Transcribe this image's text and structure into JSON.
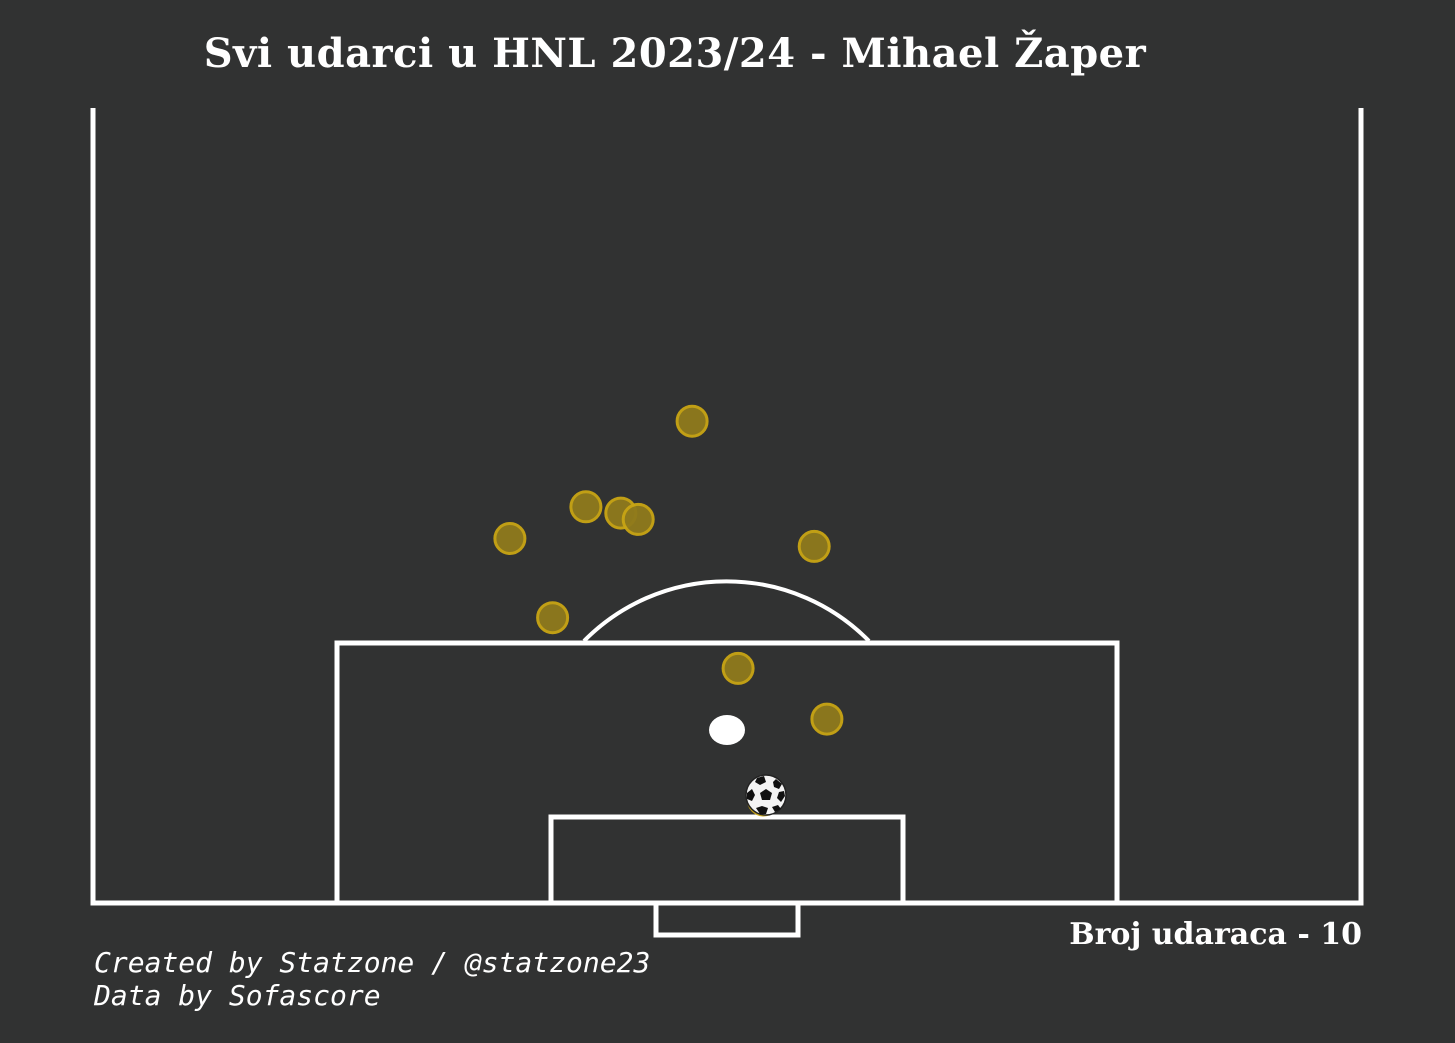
{
  "title": "Svi udarci u HNL 2023/24 - Mihael Žaper",
  "shot_count_label": "Broj udaraca - 10",
  "credits": {
    "created_by": "Created by Statzone / @statzone23",
    "data_by": "Data by Sofascore"
  },
  "colors": {
    "background": "#313232",
    "lines": "#ffffff",
    "shot_fill": "#8f7a1c",
    "shot_edge": "#c9a514"
  },
  "chart_data": {
    "type": "scatter",
    "description_units": "pitch coordinates in yards: x across pitch width (0-80, goal centre 40), y distance from goal line",
    "xlim": [
      0,
      80
    ],
    "ylim": [
      0,
      48
    ],
    "ball_icon": "soccer-ball-icon",
    "points": [
      {
        "x": 37.8,
        "y": 30.4
      },
      {
        "x": 31.1,
        "y": 25.0
      },
      {
        "x": 33.3,
        "y": 24.6
      },
      {
        "x": 34.4,
        "y": 24.2
      },
      {
        "x": 26.3,
        "y": 23.0
      },
      {
        "x": 45.5,
        "y": 22.5
      },
      {
        "x": 29.0,
        "y": 18.0
      },
      {
        "x": 40.7,
        "y": 14.8
      },
      {
        "x": 46.3,
        "y": 11.6
      },
      {
        "x": 42.3,
        "y": 6.5
      }
    ]
  }
}
